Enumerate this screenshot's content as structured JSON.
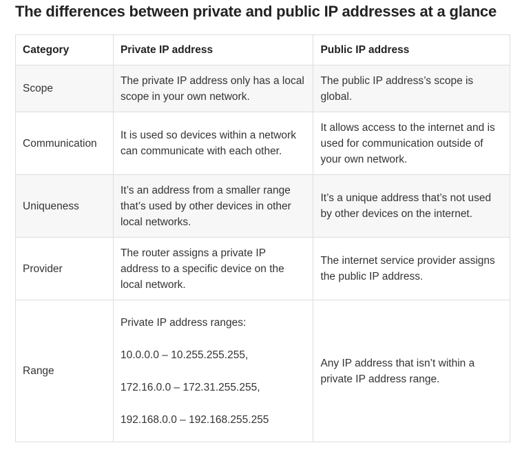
{
  "title": "The differences between private and public IP addresses at a glance",
  "table": {
    "header": [
      "Category",
      "Private IP address",
      "Public IP address"
    ],
    "rows": [
      [
        "Scope",
        "The private IP address only has a local scope in your own network.",
        "The public IP address’s scope is global."
      ],
      [
        "Communication",
        "It is used so devices within a network can communicate with each other.",
        "It allows access to the internet and is used for communication outside of your own network."
      ],
      [
        "Uniqueness",
        "It’s an address from a smaller range that’s used by other devices in other local networks.",
        "It’s a unique address that’s not used by other devices on the internet."
      ],
      [
        "Provider",
        "The router assigns a private IP address to a specific device on the local network.",
        "The internet service provider assigns the public IP address."
      ],
      [
        "Range",
        [
          "Private IP address ranges:",
          "10.0.0.0 – 10.255.255.255,",
          "172.16.0.0 – 172.31.255.255,",
          "192.168.0.0 – 192.168.255.255"
        ],
        "Any IP address that isn’t within a private IP address range."
      ]
    ]
  }
}
